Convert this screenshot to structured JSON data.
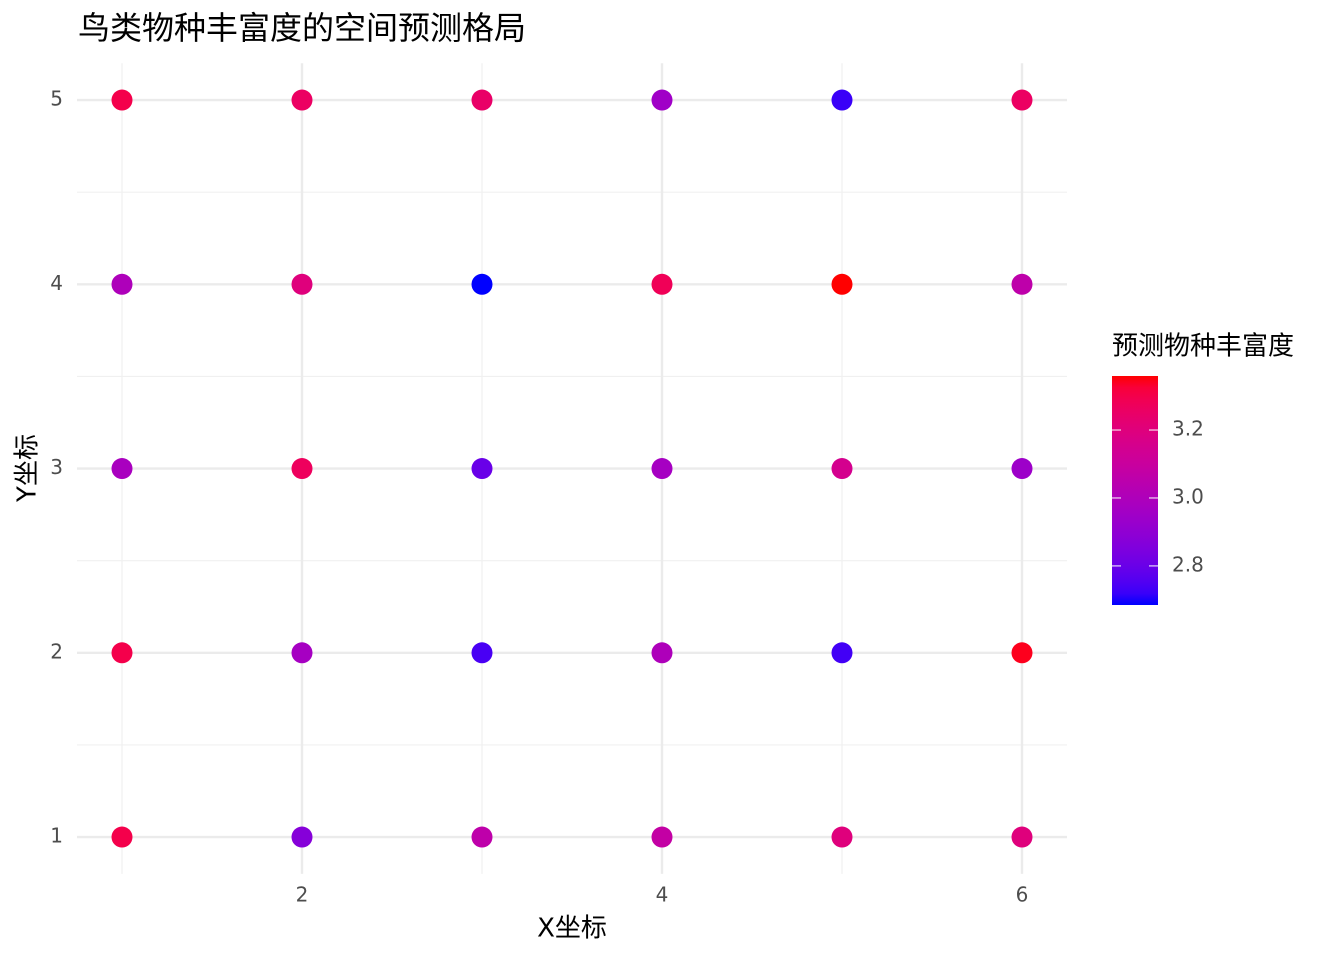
{
  "chart_data": {
    "type": "scatter",
    "title": "鸟类物种丰富度的空间预测格局",
    "x_label": "X坐标",
    "y_label": "Y坐标",
    "legend_title": "预测物种丰富度",
    "x": [
      1,
      2,
      3,
      4,
      5,
      6,
      1,
      2,
      3,
      4,
      5,
      6,
      1,
      2,
      3,
      4,
      5,
      6,
      1,
      2,
      3,
      4,
      5,
      6,
      1,
      2,
      3,
      4,
      5,
      6
    ],
    "y": [
      5,
      5,
      5,
      5,
      5,
      5,
      4,
      4,
      4,
      4,
      4,
      4,
      3,
      3,
      3,
      3,
      3,
      3,
      2,
      2,
      2,
      2,
      2,
      2,
      1,
      1,
      1,
      1,
      1,
      1
    ],
    "values": [
      3.3,
      3.26,
      3.25,
      2.95,
      2.72,
      3.26,
      3.0,
      3.2,
      2.685,
      3.28,
      3.36,
      3.06,
      2.98,
      3.27,
      2.8,
      2.97,
      3.15,
      2.94,
      3.3,
      2.97,
      2.74,
      3.0,
      2.73,
      3.35,
      3.3,
      2.87,
      3.06,
      3.08,
      3.2,
      3.2
    ],
    "xlim": [
      0.75,
      6.25
    ],
    "ylim": [
      0.8,
      5.2
    ],
    "xticks": [
      2,
      4,
      6
    ],
    "yticks": [
      1,
      2,
      3,
      4,
      5
    ],
    "x_minor_grid": [
      1,
      3,
      5
    ],
    "y_minor_grid": [
      1.5,
      2.5,
      3.5,
      4.5
    ],
    "colorlim": [
      2.685,
      3.359
    ],
    "colorticks": [
      2.8,
      {
        "value": 3,
        "label": "3.0"
      },
      3.2
    ],
    "low_color": "#0000ff",
    "high_color": "#ff0000",
    "grid": true
  }
}
